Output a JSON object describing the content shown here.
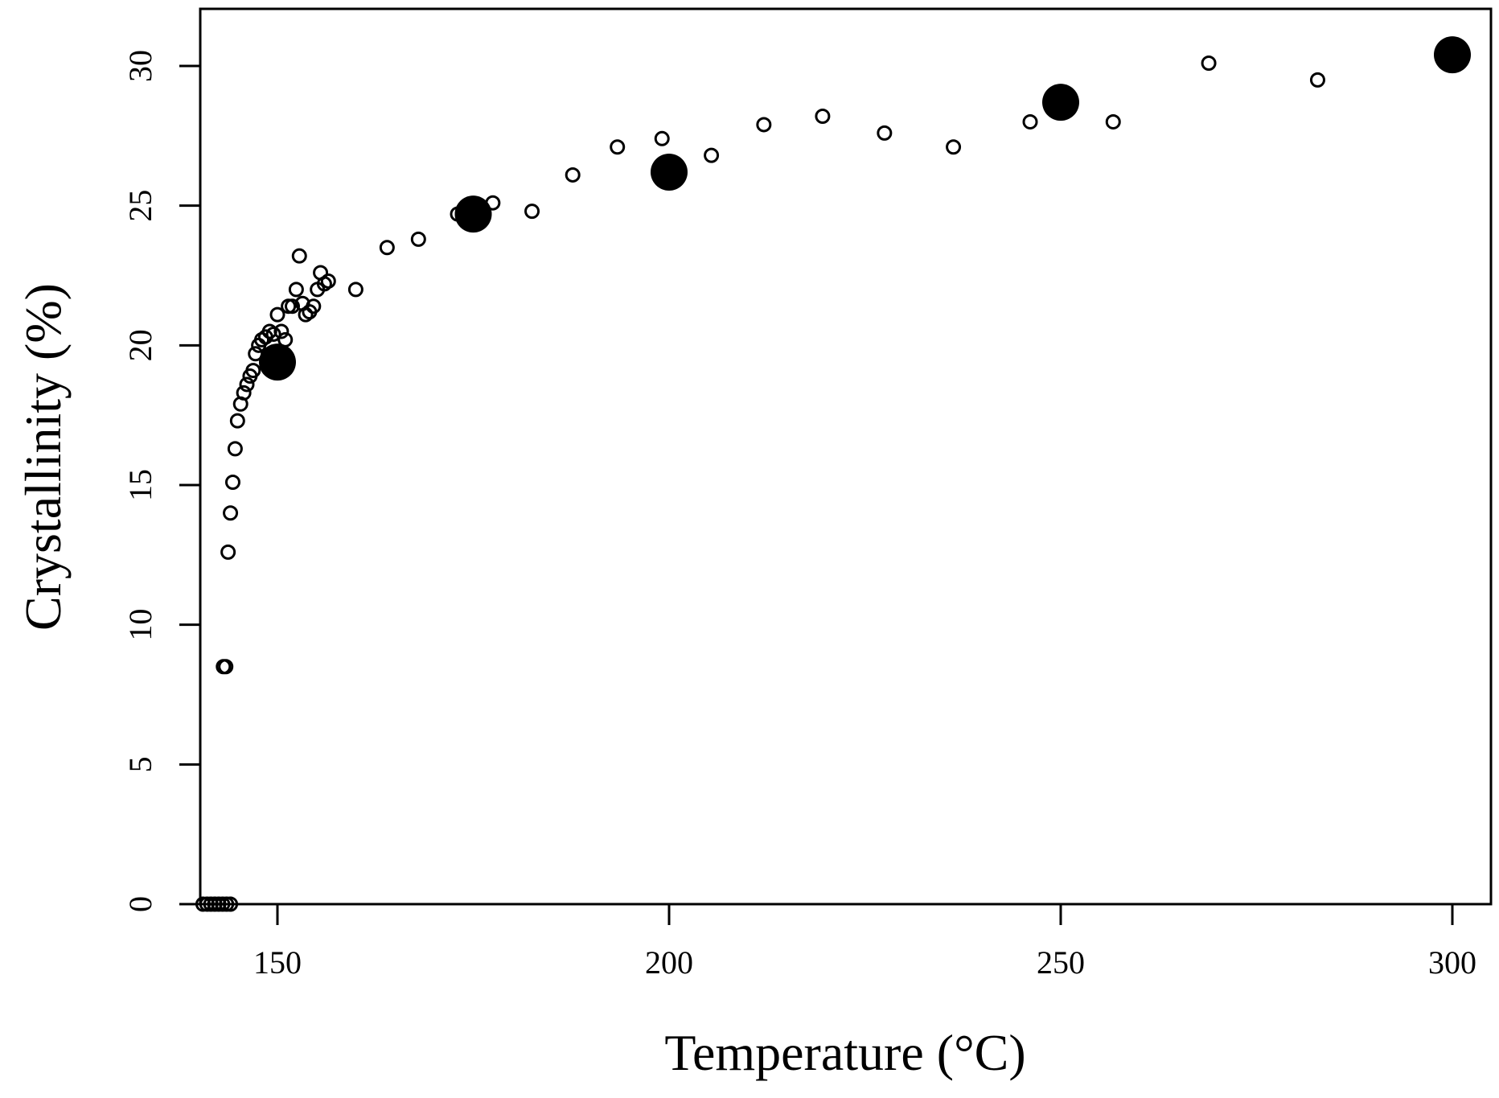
{
  "chart_data": {
    "type": "scatter",
    "title": "",
    "xlabel": "Temperature (°C)",
    "ylabel": "Crystallinity (%)",
    "xlim": [
      140,
      305
    ],
    "ylim": [
      0,
      32
    ],
    "xticks": [
      150,
      200,
      250,
      300
    ],
    "yticks": [
      0,
      5,
      10,
      15,
      20,
      25,
      30
    ],
    "grid": false,
    "legend": "none",
    "series": [
      {
        "name": "open",
        "marker": "open-circle",
        "points": [
          [
            140.5,
            0
          ],
          [
            141,
            0
          ],
          [
            141.5,
            0
          ],
          [
            142,
            0
          ],
          [
            142.5,
            0
          ],
          [
            143,
            0
          ],
          [
            143.5,
            0
          ],
          [
            144,
            0
          ],
          [
            143.1,
            8.5
          ],
          [
            143.4,
            8.5
          ],
          [
            143.7,
            12.6
          ],
          [
            144.0,
            14.0
          ],
          [
            144.3,
            15.1
          ],
          [
            144.6,
            16.3
          ],
          [
            144.9,
            17.3
          ],
          [
            145.3,
            17.9
          ],
          [
            145.7,
            18.3
          ],
          [
            146.1,
            18.6
          ],
          [
            146.5,
            18.9
          ],
          [
            146.9,
            19.1
          ],
          [
            147.2,
            19.7
          ],
          [
            147.6,
            20.0
          ],
          [
            148.0,
            20.2
          ],
          [
            148.5,
            20.3
          ],
          [
            149.0,
            20.5
          ],
          [
            149.5,
            20.4
          ],
          [
            150.0,
            21.1
          ],
          [
            150.5,
            20.5
          ],
          [
            151.0,
            20.2
          ],
          [
            151.4,
            21.4
          ],
          [
            151.9,
            21.4
          ],
          [
            152.4,
            22.0
          ],
          [
            152.8,
            23.2
          ],
          [
            153.2,
            21.5
          ],
          [
            153.6,
            21.1
          ],
          [
            154.1,
            21.2
          ],
          [
            154.6,
            21.4
          ],
          [
            155.1,
            22.0
          ],
          [
            155.5,
            22.6
          ],
          [
            156.0,
            22.2
          ],
          [
            156.5,
            22.3
          ],
          [
            160,
            22.0
          ],
          [
            164,
            23.5
          ],
          [
            168,
            23.8
          ],
          [
            173,
            24.7
          ],
          [
            177.5,
            25.1
          ],
          [
            182.5,
            24.8
          ],
          [
            187.7,
            26.1
          ],
          [
            193.4,
            27.1
          ],
          [
            199.1,
            27.4
          ],
          [
            205.4,
            26.8
          ],
          [
            212.1,
            27.9
          ],
          [
            219.6,
            28.2
          ],
          [
            227.5,
            27.6
          ],
          [
            236.3,
            27.1
          ],
          [
            246.1,
            28.0
          ],
          [
            256.7,
            28.0
          ],
          [
            268.9,
            30.1
          ],
          [
            282.8,
            29.5
          ]
        ]
      },
      {
        "name": "filled",
        "marker": "filled-circle",
        "points": [
          [
            150,
            19.4
          ],
          [
            175,
            24.7
          ],
          [
            200,
            26.2
          ],
          [
            250,
            28.7
          ],
          [
            300,
            30.4
          ]
        ]
      }
    ]
  }
}
